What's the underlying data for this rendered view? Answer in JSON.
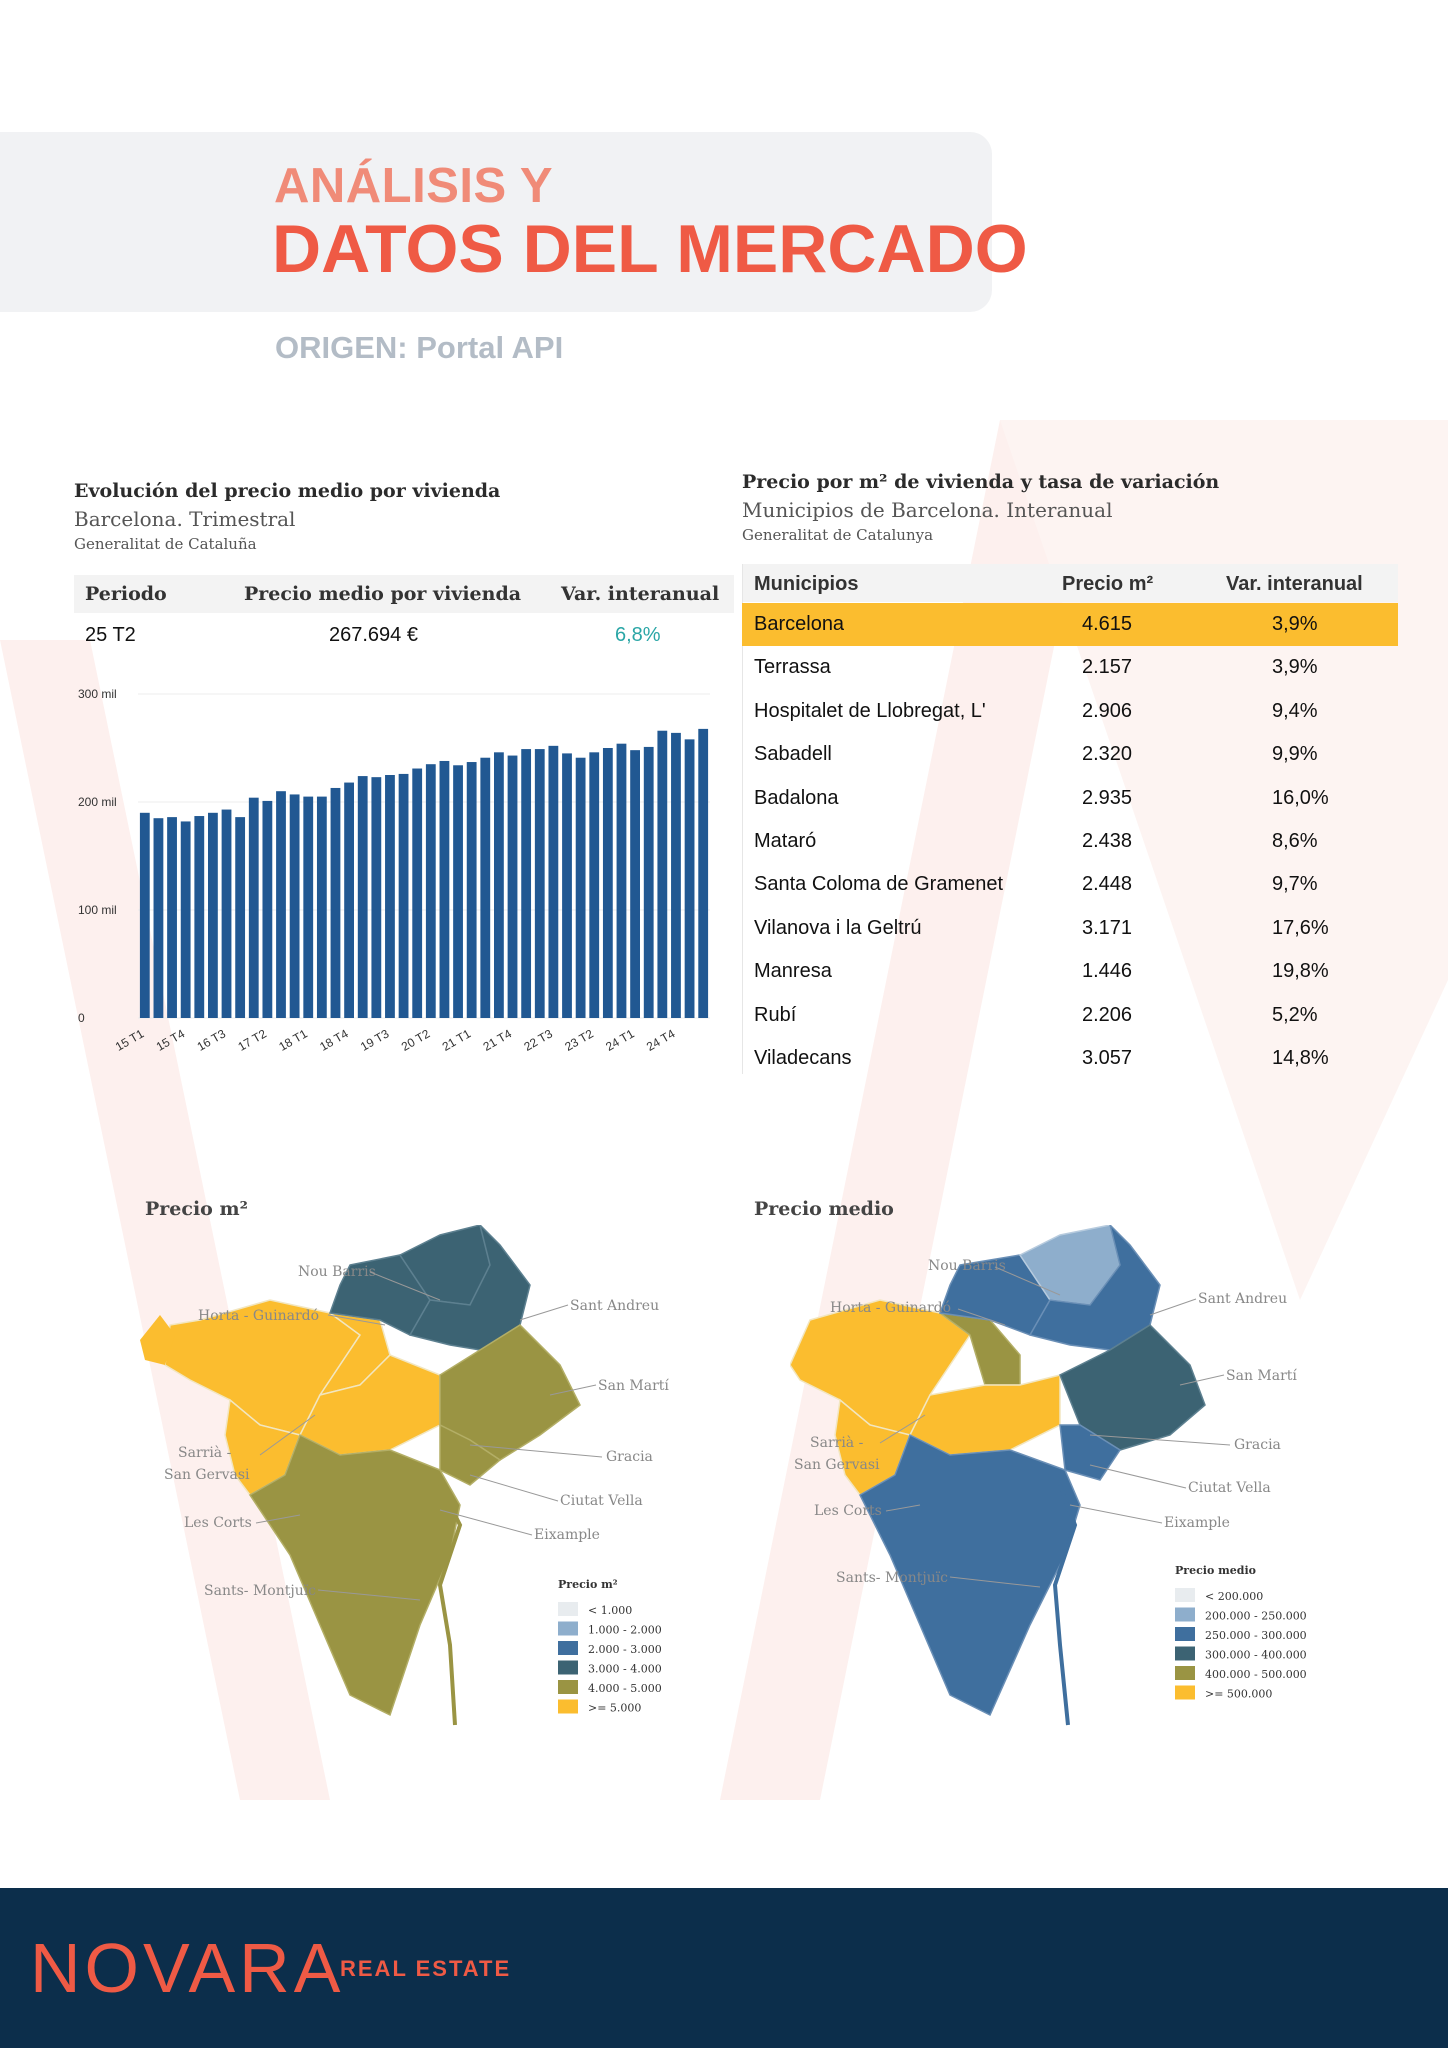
{
  "header": {
    "title_line1": "ANÁLISIS Y",
    "title_line2": "DATOS DEL MERCADO",
    "origin": "ORIGEN: Portal API"
  },
  "price_chart": {
    "title": "Evolución del precio medio por vivienda",
    "subtitle": "Barcelona. Trimestral",
    "source": "Generalitat de Cataluña",
    "table": {
      "headers": [
        "Periodo",
        "Precio medio por vivienda",
        "Var. interanual"
      ],
      "period": "25 T2",
      "price": "267.694 €",
      "variation": "6,8%"
    }
  },
  "chart_data": {
    "type": "bar",
    "title": "Evolución del precio medio por vivienda",
    "subtitle": "Barcelona. Trimestral",
    "xlabel": "",
    "ylabel": "",
    "ylim": [
      0,
      300000
    ],
    "yticks": [
      0,
      100000,
      200000,
      300000
    ],
    "ytick_labels": [
      "0",
      "100 mil",
      "200 mil",
      "300 mil"
    ],
    "tick_labels": [
      "15 T1",
      "15 T4",
      "16 T3",
      "17 T2",
      "18 T1",
      "18 T4",
      "19 T3",
      "20 T2",
      "21 T1",
      "21 T4",
      "22 T3",
      "23 T2",
      "24 T1",
      "24 T4"
    ],
    "tick_every": 3,
    "categories": [
      "15 T1",
      "15 T2",
      "15 T3",
      "15 T4",
      "16 T1",
      "16 T2",
      "16 T3",
      "16 T4",
      "17 T1",
      "17 T2",
      "17 T3",
      "17 T4",
      "18 T1",
      "18 T2",
      "18 T3",
      "18 T4",
      "19 T1",
      "19 T2",
      "19 T3",
      "19 T4",
      "20 T1",
      "20 T2",
      "20 T3",
      "20 T4",
      "21 T1",
      "21 T2",
      "21 T3",
      "21 T4",
      "22 T1",
      "22 T2",
      "22 T3",
      "22 T4",
      "23 T1",
      "23 T2",
      "23 T3",
      "23 T4",
      "24 T1",
      "24 T2",
      "24 T3",
      "24 T4",
      "25 T1",
      "25 T2"
    ],
    "values": [
      190000,
      185000,
      186000,
      182000,
      187000,
      190000,
      193000,
      186000,
      204000,
      201000,
      210000,
      207000,
      205000,
      205000,
      213000,
      218000,
      224000,
      223000,
      225000,
      226000,
      231000,
      235000,
      238000,
      234000,
      237000,
      241000,
      246000,
      243000,
      249000,
      249000,
      252000,
      245000,
      241000,
      246000,
      250000,
      254000,
      248000,
      251000,
      266000,
      264000,
      258000,
      267694
    ],
    "color": "#215892"
  },
  "municipios_table": {
    "title": "Precio por m² de vivienda y tasa de variación",
    "subtitle": "Municipios de Barcelona. Interanual",
    "source": "Generalitat de Catalunya",
    "headers": [
      "Municipios",
      "Precio m²",
      "Var. interanual"
    ],
    "highlight_color": "#fbbd2f",
    "rows": [
      {
        "name": "Barcelona",
        "price": "4.615",
        "var": "3,9%"
      },
      {
        "name": "Terrassa",
        "price": "2.157",
        "var": "3,9%"
      },
      {
        "name": "Hospitalet de Llobregat, L'",
        "price": "2.906",
        "var": "9,4%"
      },
      {
        "name": "Sabadell",
        "price": "2.320",
        "var": "9,9%"
      },
      {
        "name": "Badalona",
        "price": "2.935",
        "var": "16,0%"
      },
      {
        "name": "Mataró",
        "price": "2.438",
        "var": "8,6%"
      },
      {
        "name": "Santa Coloma de Gramenet",
        "price": "2.448",
        "var": "9,7%"
      },
      {
        "name": "Vilanova i la Geltrú",
        "price": "3.171",
        "var": "17,6%"
      },
      {
        "name": "Manresa",
        "price": "1.446",
        "var": "19,8%"
      },
      {
        "name": "Rubí",
        "price": "2.206",
        "var": "5,2%"
      },
      {
        "name": "Viladecans",
        "price": "3.057",
        "var": "14,8%"
      }
    ]
  },
  "map1": {
    "title": "Precio m²",
    "legend_title": "Precio m²",
    "districts": {
      "nou_barris": "Nou Barris",
      "horta": "Horta - Guinardó",
      "sant_andreu": "Sant Andreu",
      "sant_marti": "San Martí",
      "sarria1": "Sarrià -",
      "sarria2": "San Gervasi",
      "gracia": "Gracia",
      "ciutat_vella": "Ciutat Vella",
      "les_corts": "Les Corts",
      "eixample": "Eixample",
      "sants": "Sants- Montjuïc"
    },
    "legend": [
      {
        "label": "< 1.000",
        "color": "#e8ecef"
      },
      {
        "label": "1.000 - 2.000",
        "color": "#8eaecc"
      },
      {
        "label": "2.000 - 3.000",
        "color": "#3f6f9e"
      },
      {
        "label": "3.000 - 4.000",
        "color": "#3c6373"
      },
      {
        "label": "4.000 - 5.000",
        "color": "#9a9443"
      },
      {
        "label": ">= 5.000",
        "color": "#fbbd2f"
      }
    ]
  },
  "map2": {
    "title": "Precio medio",
    "legend_title": "Precio medio",
    "districts": {
      "nou_barris": "Nou Barris",
      "horta": "Horta - Guinardó",
      "sant_andreu": "Sant Andreu",
      "sant_marti": "San Martí",
      "sarria1": "Sarrià -",
      "sarria2": "San Gervasi",
      "gracia": "Gracia",
      "ciutat_vella": "Ciutat Vella",
      "les_corts": "Les Corts",
      "eixample": "Eixample",
      "sants": "Sants- Montjuïc"
    },
    "legend": [
      {
        "label": "< 200.000",
        "color": "#e8ecef"
      },
      {
        "label": "200.000 - 250.000",
        "color": "#8eaecc"
      },
      {
        "label": "250.000 - 300.000",
        "color": "#3f6f9e"
      },
      {
        "label": "300.000 - 400.000",
        "color": "#3c6373"
      },
      {
        "label": "400.000 - 500.000",
        "color": "#9a9443"
      },
      {
        "label": ">= 500.000",
        "color": "#fbbd2f"
      }
    ]
  },
  "footer": {
    "logo": "NOVARA",
    "tagline": "REAL ESTATE"
  }
}
